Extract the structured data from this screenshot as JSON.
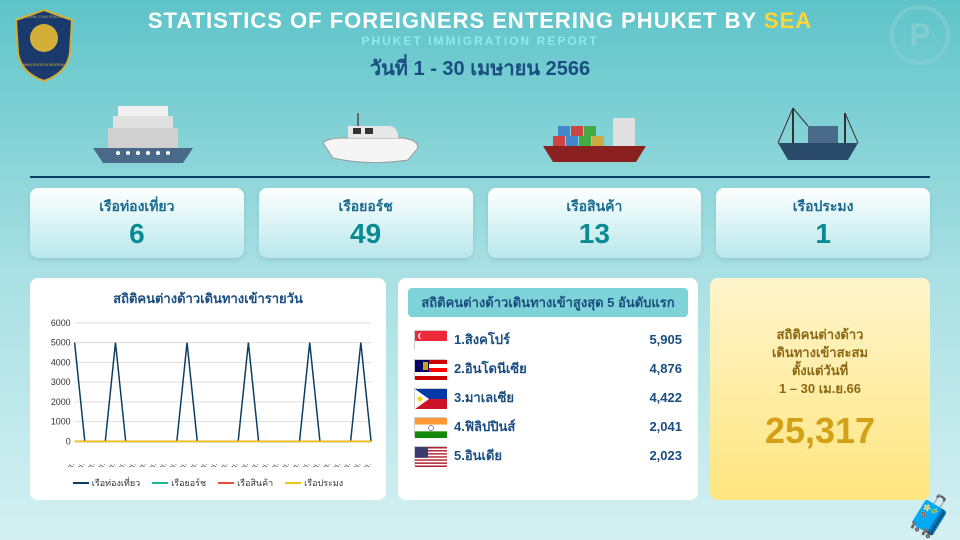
{
  "header": {
    "title_prefix": "STATISTICS OF FOREIGNERS ENTERING PHUKET BY ",
    "title_highlight": "SEA",
    "subtitle": "PHUKET IMMIGRATION REPORT",
    "date": "วันที่ 1 - 30 เมษายน 2566"
  },
  "ship_stats": [
    {
      "label": "เรือท่องเที่ยว",
      "value": "6"
    },
    {
      "label": "เรือยอร์ช",
      "value": "49"
    },
    {
      "label": "เรือสินค้า",
      "value": "13"
    },
    {
      "label": "เรือประมง",
      "value": "1"
    }
  ],
  "chart": {
    "title": "สถิติคนต่างด้าวเดินทางเข้ารายวัน",
    "ylim": [
      0,
      6000
    ],
    "ytick_step": 1000,
    "x_count": 30,
    "series": [
      {
        "name": "เรือท่องเที่ยว",
        "color": "#0a3d62",
        "data": [
          5000,
          0,
          0,
          0,
          5000,
          0,
          0,
          0,
          0,
          0,
          0,
          5000,
          0,
          0,
          0,
          0,
          0,
          5000,
          0,
          0,
          0,
          0,
          0,
          5000,
          0,
          0,
          0,
          0,
          5000,
          0
        ]
      },
      {
        "name": "เรือยอร์ช",
        "color": "#1abc9c",
        "data": [
          0,
          0,
          0,
          0,
          0,
          0,
          0,
          0,
          0,
          0,
          0,
          0,
          0,
          0,
          0,
          0,
          0,
          0,
          0,
          0,
          0,
          0,
          0,
          0,
          0,
          0,
          0,
          0,
          0,
          0
        ]
      },
      {
        "name": "เรือสินค้า",
        "color": "#e74c3c",
        "data": [
          0,
          0,
          0,
          0,
          0,
          0,
          0,
          0,
          0,
          0,
          0,
          0,
          0,
          0,
          0,
          0,
          0,
          0,
          0,
          0,
          0,
          0,
          0,
          0,
          0,
          0,
          0,
          0,
          0,
          0
        ]
      },
      {
        "name": "เรือประมง",
        "color": "#f1c40f",
        "data": [
          0,
          0,
          0,
          0,
          0,
          0,
          0,
          0,
          0,
          0,
          0,
          0,
          0,
          0,
          0,
          0,
          0,
          0,
          0,
          0,
          0,
          0,
          0,
          0,
          0,
          0,
          0,
          0,
          0,
          0
        ]
      }
    ]
  },
  "top5": {
    "title": "สถิติคนต่างด้าวเดินทางเข้าสูงสุด 5 อันดับแรก",
    "rows": [
      {
        "flag_colors": [
          "#ed2939",
          "#fff"
        ],
        "flag_type": "sg",
        "name": "1.สิงคโปร์",
        "value": "5,905"
      },
      {
        "flag_colors": [
          "#cc0001",
          "#fff",
          "#ff0000",
          "#fff",
          "#cc0001"
        ],
        "flag_type": "stripes",
        "name": "2.อินโดนีเซีย",
        "value": "4,876"
      },
      {
        "flag_colors": [
          "#0038a8",
          "#ce1126",
          "#fff"
        ],
        "flag_type": "ph",
        "name": "3.มาเลเซีย",
        "value": "4,422"
      },
      {
        "flag_colors": [
          "#ff9933",
          "#fff",
          "#138808"
        ],
        "flag_type": "tri",
        "name": "4.ฟิลิปปินส์",
        "value": "2,041"
      },
      {
        "flag_colors": [
          "#b22234",
          "#fff",
          "#3c3b6e"
        ],
        "flag_type": "us",
        "name": "5.อินเดีย",
        "value": "2,023"
      }
    ]
  },
  "total": {
    "label_l1": "สถิติคนต่างด้าว",
    "label_l2": "เดินทางเข้าสะสม",
    "label_l3": "ตั้งแต่วันที่",
    "label_l4": "1 – 30 เม.ย.66",
    "value": "25,317"
  }
}
